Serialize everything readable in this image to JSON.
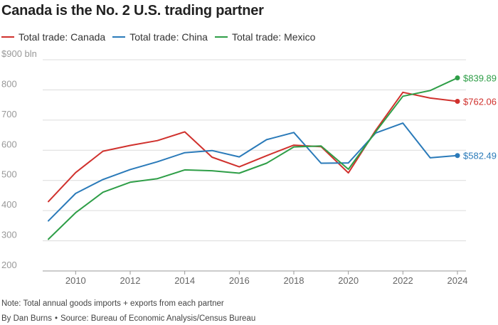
{
  "title": "Canada is the No. 2 U.S. trading partner",
  "note": "Note: Total annual goods imports + exports from each partner",
  "byline": "By Dan Burns",
  "separator": "•",
  "source": "Source: Bureau of Economic Analysis/Census Bureau",
  "chart_data": {
    "type": "line",
    "x": [
      2009,
      2010,
      2011,
      2012,
      2013,
      2014,
      2015,
      2016,
      2017,
      2018,
      2019,
      2020,
      2021,
      2022,
      2023,
      2024
    ],
    "series": [
      {
        "name": "Total trade: Canada",
        "color": "#d0312d",
        "values": [
          430,
          526,
          597,
          616,
          632,
          661,
          577,
          545,
          582,
          617,
          612,
          525,
          666,
          792,
          773,
          762.06
        ],
        "end_label": "$762.06"
      },
      {
        "name": "Total trade: China",
        "color": "#2a7ab9",
        "values": [
          366,
          457,
          503,
          536,
          562,
          592,
          599,
          578,
          635,
          659,
          557,
          558,
          657,
          690,
          575,
          582.49
        ],
        "end_label": "$582.49"
      },
      {
        "name": "Total trade: Mexico",
        "color": "#2e9e47",
        "values": [
          305,
          393,
          461,
          494,
          506,
          535,
          532,
          524,
          557,
          611,
          614,
          537,
          661,
          779,
          798,
          839.89
        ],
        "end_label": "$839.89"
      }
    ],
    "yticks": [
      200,
      300,
      400,
      500,
      600,
      700,
      800,
      900
    ],
    "ytick_labels": [
      "200",
      "300",
      "400",
      "500",
      "600",
      "700",
      "800",
      "$900 bln"
    ],
    "xticks": [
      2010,
      2012,
      2014,
      2016,
      2018,
      2020,
      2022,
      2024
    ],
    "xtick_labels": [
      "2010",
      "2012",
      "2014",
      "2016",
      "2018",
      "2020",
      "2022",
      "2024"
    ],
    "ylim": [
      200,
      900
    ],
    "xlim": [
      2009,
      2024
    ],
    "grid": true,
    "legend_position": "top-left"
  }
}
